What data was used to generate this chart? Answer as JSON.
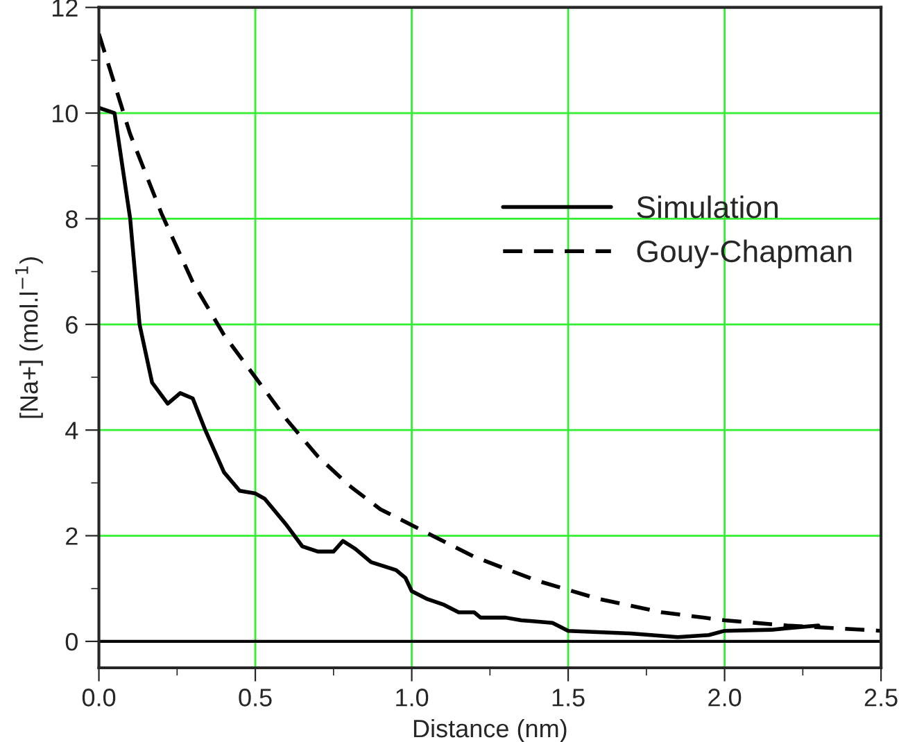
{
  "chart_data": {
    "type": "line",
    "xlabel": "Distance (nm)",
    "ylabel": "[Na+] (mol.l$^{−1}$)",
    "xlim": [
      0,
      2.5
    ],
    "ylim": [
      -0.5,
      12
    ],
    "xticks": [
      {
        "value": 0,
        "label": "0.0"
      },
      {
        "value": 0.5,
        "label": "0.5"
      },
      {
        "value": 1,
        "label": "1.0"
      },
      {
        "value": 1.5,
        "label": "1.5"
      },
      {
        "value": 2,
        "label": "2.0"
      },
      {
        "value": 2.5,
        "label": "2.5"
      }
    ],
    "yticks": [
      0,
      2,
      4,
      6,
      8,
      10,
      12
    ],
    "grid": true,
    "legend": "right",
    "ref_lines": [
      {
        "axis": "y",
        "value": 0,
        "color": "#000000"
      }
    ],
    "series": [
      {
        "name": "Simulation",
        "color": "#000000",
        "line_style": "solid",
        "x": [
          0,
          0.05,
          0.1,
          0.13,
          0.17,
          0.22,
          0.26,
          0.3,
          0.34,
          0.4,
          0.45,
          0.5,
          0.53,
          0.6,
          0.65,
          0.7,
          0.75,
          0.78,
          0.82,
          0.87,
          0.95,
          0.98,
          1.0,
          1.05,
          1.1,
          1.15,
          1.2,
          1.22,
          1.3,
          1.35,
          1.45,
          1.5,
          1.7,
          1.85,
          1.95,
          2.0,
          2.15,
          2.2,
          2.3
        ],
        "values": [
          10.1,
          10.0,
          8.0,
          6.0,
          4.9,
          4.5,
          4.7,
          4.6,
          4.0,
          3.2,
          2.85,
          2.8,
          2.7,
          2.2,
          1.8,
          1.7,
          1.7,
          1.9,
          1.75,
          1.5,
          1.35,
          1.2,
          0.95,
          0.8,
          0.7,
          0.55,
          0.55,
          0.45,
          0.45,
          0.4,
          0.35,
          0.2,
          0.15,
          0.08,
          0.12,
          0.2,
          0.22,
          0.25,
          0.3
        ]
      },
      {
        "name": "Gouy-Chapman",
        "color": "#000000",
        "line_style": "dashed",
        "x": [
          0,
          0.1,
          0.2,
          0.3,
          0.4,
          0.5,
          0.6,
          0.7,
          0.8,
          0.9,
          1.0,
          1.2,
          1.4,
          1.6,
          1.8,
          2.0,
          2.2,
          2.5
        ],
        "values": [
          11.5,
          9.6,
          8.1,
          6.8,
          5.8,
          5.0,
          4.2,
          3.5,
          2.95,
          2.5,
          2.2,
          1.6,
          1.15,
          0.8,
          0.55,
          0.4,
          0.3,
          0.2
        ]
      }
    ]
  }
}
